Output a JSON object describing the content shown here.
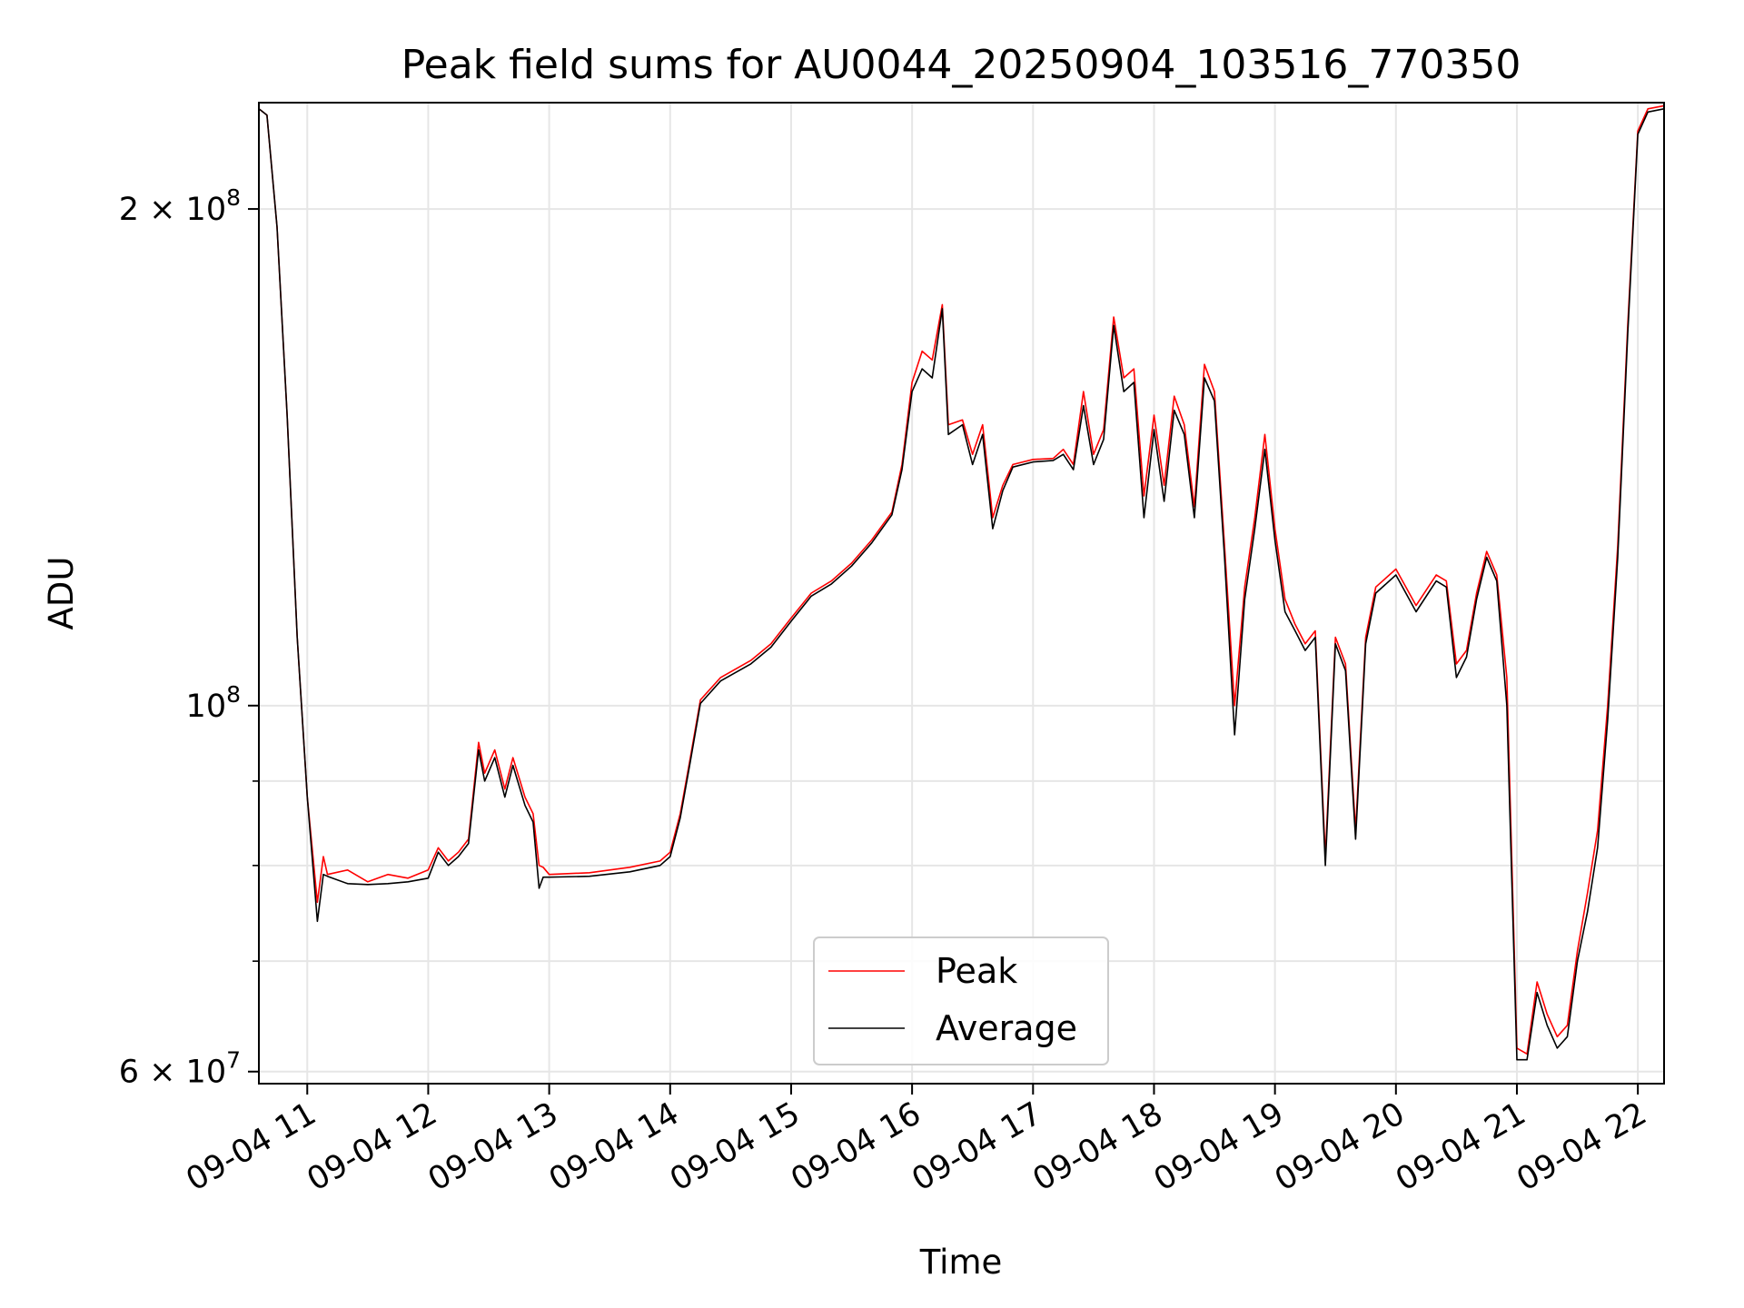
{
  "chart_data": {
    "type": "line",
    "title": "Peak field sums for AU0044_20250904_103516_770350",
    "xlabel": "Time",
    "ylabel": "ADU",
    "y_scale": "log",
    "ylim": [
      59000000,
      232000000
    ],
    "xlim": [
      "09-04 10:36",
      "09-04 22:13"
    ],
    "grid": true,
    "legend_position": "lower center",
    "x_ticks": [
      "09-04 11",
      "09-04 12",
      "09-04 13",
      "09-04 14",
      "09-04 15",
      "09-04 16",
      "09-04 17",
      "09-04 18",
      "09-04 19",
      "09-04 20",
      "09-04 21",
      "09-04 22"
    ],
    "y_ticks": [
      {
        "value": 200000000,
        "mantissa": "2",
        "exponent": "8"
      },
      {
        "value": 100000000,
        "mantissa": "",
        "exponent": "8"
      },
      {
        "value": 60000000,
        "mantissa": "6",
        "exponent": "7"
      }
    ],
    "y_minor_ticks": [
      70000000,
      80000000,
      90000000
    ],
    "colors": {
      "Peak": "#ff0000",
      "Average": "#000000"
    },
    "series": [
      {
        "name": "Peak",
        "color": "#ff0000",
        "points": [
          [
            "09-04 10:36",
            230000000
          ],
          [
            "09-04 10:40",
            228000000
          ],
          [
            "09-04 10:45",
            195000000
          ],
          [
            "09-04 10:50",
            150000000
          ],
          [
            "09-04 10:55",
            110000000
          ],
          [
            "09-04 11:00",
            88000000
          ],
          [
            "09-04 11:05",
            76000000
          ],
          [
            "09-04 11:08",
            81000000
          ],
          [
            "09-04 11:10",
            79000000
          ],
          [
            "09-04 11:20",
            79500000
          ],
          [
            "09-04 11:30",
            78200000
          ],
          [
            "09-04 11:40",
            79000000
          ],
          [
            "09-04 11:50",
            78600000
          ],
          [
            "09-04 12:00",
            79500000
          ],
          [
            "09-04 12:05",
            82000000
          ],
          [
            "09-04 12:10",
            80500000
          ],
          [
            "09-04 12:15",
            81500000
          ],
          [
            "09-04 12:20",
            83000000
          ],
          [
            "09-04 12:25",
            95000000
          ],
          [
            "09-04 12:28",
            91000000
          ],
          [
            "09-04 12:33",
            94000000
          ],
          [
            "09-04 12:38",
            89000000
          ],
          [
            "09-04 12:42",
            93000000
          ],
          [
            "09-04 12:48",
            88000000
          ],
          [
            "09-04 12:52",
            86000000
          ],
          [
            "09-04 12:55",
            80000000
          ],
          [
            "09-04 12:57",
            79800000
          ],
          [
            "09-04 13:00",
            79000000
          ],
          [
            "09-04 13:20",
            79200000
          ],
          [
            "09-04 13:40",
            79800000
          ],
          [
            "09-04 13:55",
            80500000
          ],
          [
            "09-04 14:00",
            81500000
          ],
          [
            "09-04 14:05",
            86000000
          ],
          [
            "09-04 14:10",
            93000000
          ],
          [
            "09-04 14:15",
            100800000
          ],
          [
            "09-04 14:25",
            104000000
          ],
          [
            "09-04 14:40",
            106500000
          ],
          [
            "09-04 14:50",
            109000000
          ],
          [
            "09-04 15:00",
            113000000
          ],
          [
            "09-04 15:10",
            117000000
          ],
          [
            "09-04 15:20",
            119000000
          ],
          [
            "09-04 15:30",
            122000000
          ],
          [
            "09-04 15:40",
            126000000
          ],
          [
            "09-04 15:50",
            131000000
          ],
          [
            "09-04 15:55",
            140000000
          ],
          [
            "09-04 16:00",
            157000000
          ],
          [
            "09-04 16:05",
            164000000
          ],
          [
            "09-04 16:10",
            162000000
          ],
          [
            "09-04 16:15",
            175000000
          ],
          [
            "09-04 16:18",
            148000000
          ],
          [
            "09-04 16:25",
            149000000
          ],
          [
            "09-04 16:30",
            142000000
          ],
          [
            "09-04 16:35",
            148000000
          ],
          [
            "09-04 16:40",
            130000000
          ],
          [
            "09-04 16:45",
            136000000
          ],
          [
            "09-04 16:50",
            140000000
          ],
          [
            "09-04 17:00",
            141000000
          ],
          [
            "09-04 17:10",
            141200000
          ],
          [
            "09-04 17:15",
            143000000
          ],
          [
            "09-04 17:20",
            140000000
          ],
          [
            "09-04 17:25",
            155000000
          ],
          [
            "09-04 17:30",
            142000000
          ],
          [
            "09-04 17:35",
            147000000
          ],
          [
            "09-04 17:40",
            172000000
          ],
          [
            "09-04 17:45",
            158000000
          ],
          [
            "09-04 17:50",
            160000000
          ],
          [
            "09-04 17:55",
            134000000
          ],
          [
            "09-04 18:00",
            150000000
          ],
          [
            "09-04 18:05",
            136000000
          ],
          [
            "09-04 18:10",
            154000000
          ],
          [
            "09-04 18:15",
            148000000
          ],
          [
            "09-04 18:20",
            132000000
          ],
          [
            "09-04 18:25",
            161000000
          ],
          [
            "09-04 18:30",
            155000000
          ],
          [
            "09-04 18:35",
            125000000
          ],
          [
            "09-04 18:40",
            100000000
          ],
          [
            "09-04 18:45",
            118000000
          ],
          [
            "09-04 18:50",
            130000000
          ],
          [
            "09-04 18:55",
            146000000
          ],
          [
            "09-04 19:00",
            128000000
          ],
          [
            "09-04 19:05",
            116000000
          ],
          [
            "09-04 19:10",
            112000000
          ],
          [
            "09-04 19:15",
            109000000
          ],
          [
            "09-04 19:20",
            111000000
          ],
          [
            "09-04 19:25",
            81000000
          ],
          [
            "09-04 19:30",
            110000000
          ],
          [
            "09-04 19:35",
            106000000
          ],
          [
            "09-04 19:40",
            84000000
          ],
          [
            "09-04 19:45",
            110000000
          ],
          [
            "09-04 19:50",
            118000000
          ],
          [
            "09-04 20:00",
            121000000
          ],
          [
            "09-04 20:10",
            115000000
          ],
          [
            "09-04 20:20",
            120000000
          ],
          [
            "09-04 20:25",
            119000000
          ],
          [
            "09-04 20:30",
            106000000
          ],
          [
            "09-04 20:35",
            108000000
          ],
          [
            "09-04 20:40",
            117000000
          ],
          [
            "09-04 20:45",
            124000000
          ],
          [
            "09-04 20:50",
            120000000
          ],
          [
            "09-04 20:55",
            104000000
          ],
          [
            "09-04 21:00",
            62000000
          ],
          [
            "09-04 21:05",
            61500000
          ],
          [
            "09-04 21:10",
            68000000
          ],
          [
            "09-04 21:15",
            65000000
          ],
          [
            "09-04 21:20",
            63000000
          ],
          [
            "09-04 21:25",
            64000000
          ],
          [
            "09-04 21:30",
            71000000
          ],
          [
            "09-04 21:35",
            77000000
          ],
          [
            "09-04 21:40",
            84000000
          ],
          [
            "09-04 21:45",
            100000000
          ],
          [
            "09-04 21:50",
            125000000
          ],
          [
            "09-04 21:55",
            170000000
          ],
          [
            "09-04 22:00",
            223000000
          ],
          [
            "09-04 22:05",
            230000000
          ],
          [
            "09-04 22:13",
            231000000
          ]
        ]
      },
      {
        "name": "Average",
        "color": "#000000",
        "points": [
          [
            "09-04 10:36",
            230000000
          ],
          [
            "09-04 10:40",
            228000000
          ],
          [
            "09-04 10:45",
            195000000
          ],
          [
            "09-04 10:50",
            150000000
          ],
          [
            "09-04 10:55",
            110000000
          ],
          [
            "09-04 11:00",
            88000000
          ],
          [
            "09-04 11:05",
            74000000
          ],
          [
            "09-04 11:08",
            79000000
          ],
          [
            "09-04 11:10",
            78800000
          ],
          [
            "09-04 11:20",
            78000000
          ],
          [
            "09-04 11:30",
            77900000
          ],
          [
            "09-04 11:40",
            78000000
          ],
          [
            "09-04 11:50",
            78200000
          ],
          [
            "09-04 12:00",
            78600000
          ],
          [
            "09-04 12:05",
            81500000
          ],
          [
            "09-04 12:10",
            80000000
          ],
          [
            "09-04 12:15",
            81000000
          ],
          [
            "09-04 12:20",
            82500000
          ],
          [
            "09-04 12:25",
            94000000
          ],
          [
            "09-04 12:28",
            90000000
          ],
          [
            "09-04 12:33",
            93000000
          ],
          [
            "09-04 12:38",
            88000000
          ],
          [
            "09-04 12:42",
            92000000
          ],
          [
            "09-04 12:48",
            87000000
          ],
          [
            "09-04 12:52",
            85000000
          ],
          [
            "09-04 12:55",
            77500000
          ],
          [
            "09-04 12:57",
            78700000
          ],
          [
            "09-04 13:00",
            78700000
          ],
          [
            "09-04 13:20",
            78800000
          ],
          [
            "09-04 13:40",
            79300000
          ],
          [
            "09-04 13:55",
            80000000
          ],
          [
            "09-04 14:00",
            81000000
          ],
          [
            "09-04 14:05",
            85500000
          ],
          [
            "09-04 14:10",
            92500000
          ],
          [
            "09-04 14:15",
            100300000
          ],
          [
            "09-04 14:25",
            103500000
          ],
          [
            "09-04 14:40",
            106000000
          ],
          [
            "09-04 14:50",
            108500000
          ],
          [
            "09-04 15:00",
            112500000
          ],
          [
            "09-04 15:10",
            116500000
          ],
          [
            "09-04 15:20",
            118500000
          ],
          [
            "09-04 15:30",
            121500000
          ],
          [
            "09-04 15:40",
            125500000
          ],
          [
            "09-04 15:50",
            130500000
          ],
          [
            "09-04 15:55",
            139000000
          ],
          [
            "09-04 16:00",
            155000000
          ],
          [
            "09-04 16:05",
            160000000
          ],
          [
            "09-04 16:10",
            158000000
          ],
          [
            "09-04 16:15",
            174000000
          ],
          [
            "09-04 16:18",
            146000000
          ],
          [
            "09-04 16:25",
            148000000
          ],
          [
            "09-04 16:30",
            140000000
          ],
          [
            "09-04 16:35",
            146000000
          ],
          [
            "09-04 16:40",
            128000000
          ],
          [
            "09-04 16:45",
            135000000
          ],
          [
            "09-04 16:50",
            139500000
          ],
          [
            "09-04 17:00",
            140500000
          ],
          [
            "09-04 17:10",
            140800000
          ],
          [
            "09-04 17:15",
            142000000
          ],
          [
            "09-04 17:20",
            139000000
          ],
          [
            "09-04 17:25",
            152000000
          ],
          [
            "09-04 17:30",
            140000000
          ],
          [
            "09-04 17:35",
            145000000
          ],
          [
            "09-04 17:40",
            170000000
          ],
          [
            "09-04 17:45",
            155000000
          ],
          [
            "09-04 17:50",
            157000000
          ],
          [
            "09-04 17:55",
            130000000
          ],
          [
            "09-04 18:00",
            147000000
          ],
          [
            "09-04 18:05",
            133000000
          ],
          [
            "09-04 18:10",
            151000000
          ],
          [
            "09-04 18:15",
            146000000
          ],
          [
            "09-04 18:20",
            130000000
          ],
          [
            "09-04 18:25",
            158000000
          ],
          [
            "09-04 18:30",
            153000000
          ],
          [
            "09-04 18:35",
            123000000
          ],
          [
            "09-04 18:40",
            96000000
          ],
          [
            "09-04 18:45",
            116000000
          ],
          [
            "09-04 18:50",
            128000000
          ],
          [
            "09-04 18:55",
            143000000
          ],
          [
            "09-04 19:00",
            126000000
          ],
          [
            "09-04 19:05",
            114000000
          ],
          [
            "09-04 19:10",
            111000000
          ],
          [
            "09-04 19:15",
            108000000
          ],
          [
            "09-04 19:20",
            110000000
          ],
          [
            "09-04 19:25",
            80000000
          ],
          [
            "09-04 19:30",
            109000000
          ],
          [
            "09-04 19:35",
            105000000
          ],
          [
            "09-04 19:40",
            83000000
          ],
          [
            "09-04 19:45",
            109000000
          ],
          [
            "09-04 19:50",
            117000000
          ],
          [
            "09-04 20:00",
            120000000
          ],
          [
            "09-04 20:10",
            114000000
          ],
          [
            "09-04 20:20",
            119000000
          ],
          [
            "09-04 20:25",
            118000000
          ],
          [
            "09-04 20:30",
            104000000
          ],
          [
            "09-04 20:35",
            107000000
          ],
          [
            "09-04 20:40",
            116000000
          ],
          [
            "09-04 20:45",
            123000000
          ],
          [
            "09-04 20:50",
            119000000
          ],
          [
            "09-04 20:55",
            100000000
          ],
          [
            "09-04 21:00",
            61000000
          ],
          [
            "09-04 21:05",
            61000000
          ],
          [
            "09-04 21:10",
            67000000
          ],
          [
            "09-04 21:15",
            64000000
          ],
          [
            "09-04 21:20",
            62000000
          ],
          [
            "09-04 21:25",
            63000000
          ],
          [
            "09-04 21:30",
            70000000
          ],
          [
            "09-04 21:35",
            75000000
          ],
          [
            "09-04 21:40",
            82000000
          ],
          [
            "09-04 21:45",
            98000000
          ],
          [
            "09-04 21:50",
            123000000
          ],
          [
            "09-04 21:55",
            168000000
          ],
          [
            "09-04 22:00",
            222000000
          ],
          [
            "09-04 22:05",
            229000000
          ],
          [
            "09-04 22:13",
            230000000
          ]
        ]
      }
    ]
  }
}
